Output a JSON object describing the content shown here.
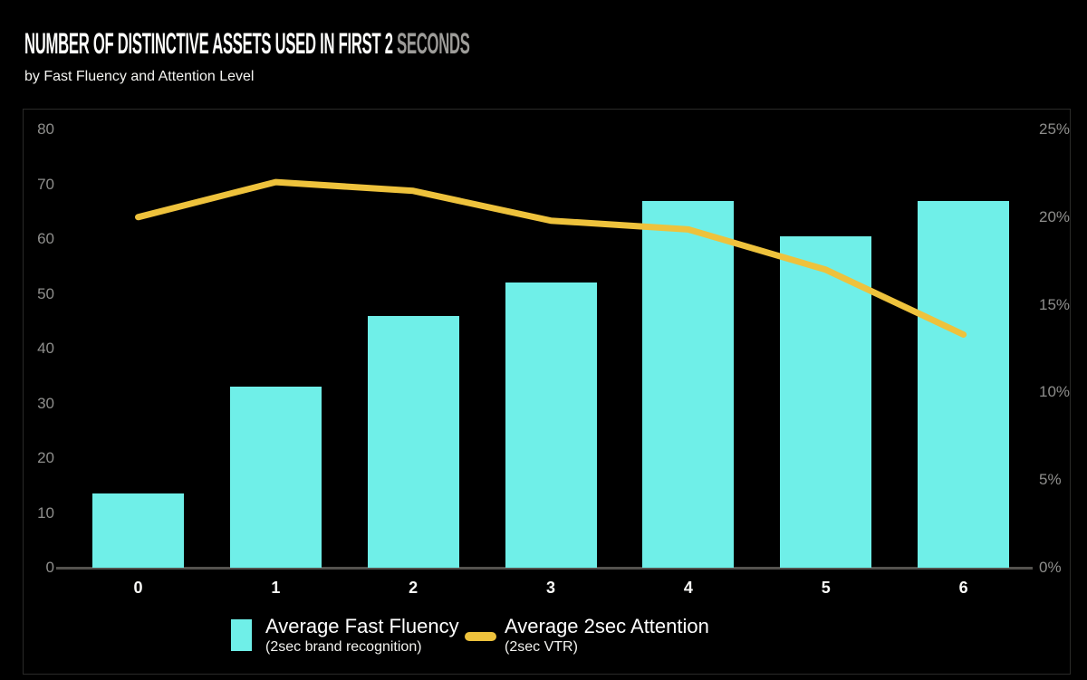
{
  "title": {
    "main": "NUMBER OF DISTINCTIVE ASSETS USED IN FIRST 2 ",
    "highlight": "SECONDS"
  },
  "subtitle": "by Fast Fluency and Attention Level",
  "colors": {
    "page_bg": "#000000",
    "panel_border": "#2a2a28",
    "bar": "#6FEFE8",
    "line": "#EEC23C",
    "axis_line": "#54524e",
    "tick_text": "#8e8e8c",
    "x_label_text": "#fafaf8",
    "title_text": "#fcfcfa",
    "title_highlight": "#9d9c99"
  },
  "legend": [
    {
      "label": "Average Fast Fluency",
      "sublabel": "(2sec brand recognition)",
      "swatch": "square",
      "color": "#6FEFE8"
    },
    {
      "label": "Average 2sec Attention",
      "sublabel": "(2sec VTR)",
      "swatch": "line",
      "color": "#EEC23C"
    }
  ],
  "chart_data": {
    "type": "bar",
    "title": "NUMBER OF DISTINCTIVE ASSETS USED IN FIRST 2 SECONDS",
    "subtitle": "by Fast Fluency and Attention Level",
    "categories": [
      "0",
      "1",
      "2",
      "3",
      "4",
      "5",
      "6"
    ],
    "xlabel": "Number of distinctive assets used in first 2 seconds",
    "series": [
      {
        "name": "Average Fast Fluency (2sec brand recognition)",
        "type": "bar",
        "axis": "left",
        "values": [
          13.5,
          33,
          46,
          52,
          67,
          60.5,
          67
        ]
      },
      {
        "name": "Average 2sec Attention (2sec VTR)",
        "type": "line",
        "axis": "right",
        "values": [
          20,
          22,
          21.5,
          19.8,
          19.3,
          17,
          13.3
        ]
      }
    ],
    "left_axis": {
      "ticks": [
        "0",
        "10",
        "20",
        "30",
        "40",
        "50",
        "60",
        "70",
        "80"
      ],
      "min": 0,
      "max": 80
    },
    "right_axis": {
      "ticks": [
        "0%",
        "5%",
        "10%",
        "15%",
        "20%",
        "25%"
      ],
      "min": 0,
      "max": 25
    },
    "grid": false,
    "legend_position": "bottom"
  }
}
